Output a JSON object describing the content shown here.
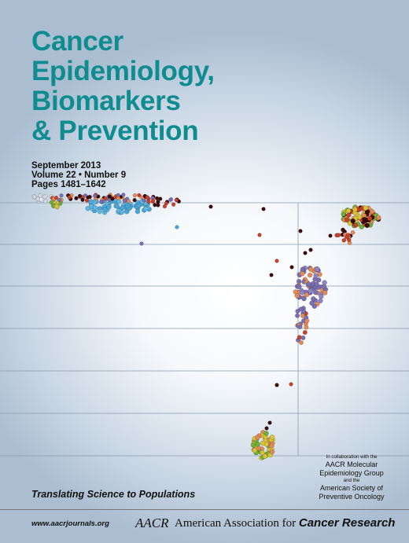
{
  "journal": {
    "title_lines": [
      "Cancer",
      "Epidemiology,",
      "Biomarkers",
      "& Prevention"
    ],
    "issue_date": "September 2013",
    "volume_number": "Volume 22 • Number 9",
    "pages": "Pages 1481–1642"
  },
  "collaboration": {
    "intro": "In collaboration with the",
    "org1": "AACR Molecular",
    "org1_line2": "Epidemiology Group",
    "joiner": "and the",
    "org2": "American Society of",
    "org2_line2": "Preventive Oncology"
  },
  "tagline": "Translating Science to Populations",
  "footer": {
    "url": "www.aacrjournals.org",
    "logo_text": "AACR",
    "publisher_regular": "American Association for",
    "publisher_bold": "Cancer Research"
  },
  "colors": {
    "title": "#0f8c8f",
    "background_edge": "#aabdd1",
    "dot_dark": "#3a0c0c",
    "dot_red": "#c4412a",
    "dot_orange": "#e08a5a",
    "dot_purple": "#7a6fb0",
    "dot_blue": "#4aa6d6",
    "dot_yellow": "#d8c23a",
    "dot_green": "#6fae3a"
  }
}
